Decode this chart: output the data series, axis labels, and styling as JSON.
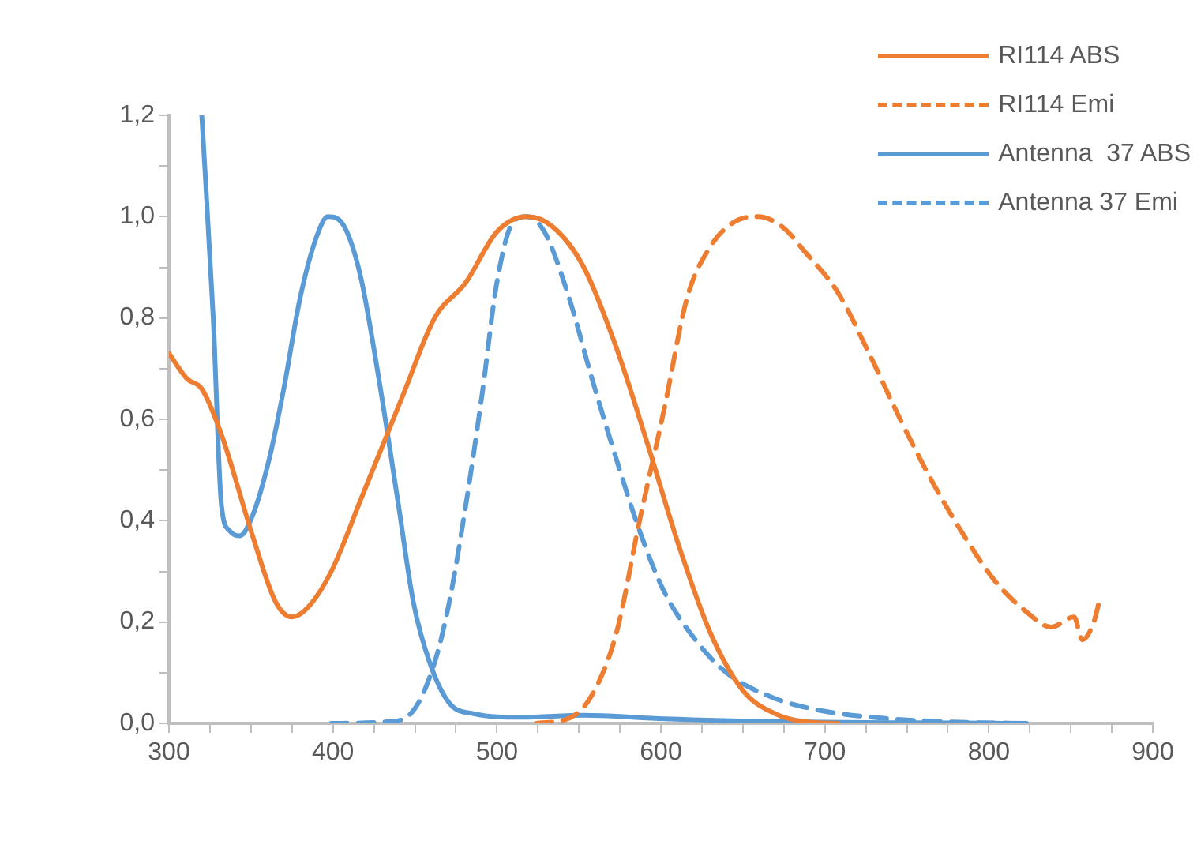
{
  "chart_data": {
    "type": "line",
    "xlim": [
      300,
      900
    ],
    "ylim": [
      0,
      1.2
    ],
    "xticks": [
      300,
      {
        "value": 325,
        "label": null
      },
      {
        "value": 350,
        "label": null
      },
      {
        "value": 375,
        "label": null
      },
      400,
      {
        "value": 425,
        "label": null
      },
      {
        "value": 450,
        "label": null
      },
      {
        "value": 475,
        "label": null
      },
      500,
      {
        "value": 525,
        "label": null
      },
      {
        "value": 550,
        "label": null
      },
      {
        "value": 575,
        "label": null
      },
      600,
      {
        "value": 625,
        "label": null
      },
      {
        "value": 650,
        "label": null
      },
      {
        "value": 675,
        "label": null
      },
      700,
      {
        "value": 725,
        "label": null
      },
      {
        "value": 750,
        "label": null
      },
      {
        "value": 775,
        "label": null
      },
      800,
      {
        "value": 825,
        "label": null
      },
      {
        "value": 850,
        "label": null
      },
      {
        "value": 875,
        "label": null
      },
      900
    ],
    "yticks": [
      {
        "value": 0,
        "label": "0,0"
      },
      {
        "value": 0.1,
        "label": null
      },
      {
        "value": 0.2,
        "label": "0,2"
      },
      {
        "value": 0.3,
        "label": null
      },
      {
        "value": 0.4,
        "label": "0,4"
      },
      {
        "value": 0.5,
        "label": null
      },
      {
        "value": 0.6,
        "label": "0,6"
      },
      {
        "value": 0.7,
        "label": null
      },
      {
        "value": 0.8,
        "label": "0,8"
      },
      {
        "value": 0.9,
        "label": null
      },
      {
        "value": 1.0,
        "label": "1,0"
      },
      {
        "value": 1.1,
        "label": null
      },
      {
        "value": 1.2,
        "label": "1,2"
      }
    ],
    "grid": false,
    "legend": "top right",
    "marker": "none",
    "series": [
      {
        "name": "RI114 ABS",
        "color": "#ed7d31",
        "line_style": "solid",
        "x": [
          300,
          311,
          320,
          332,
          351,
          365,
          375,
          385,
          399,
          418,
          443,
          462,
          481,
          500,
          518,
          534,
          553,
          573,
          592,
          611,
          630,
          650,
          669,
          688,
          708
        ],
        "values": [
          0.73,
          0.68,
          0.66,
          0.57,
          0.37,
          0.24,
          0.21,
          0.23,
          0.3,
          0.45,
          0.65,
          0.8,
          0.87,
          0.97,
          1.0,
          0.98,
          0.9,
          0.74,
          0.55,
          0.35,
          0.18,
          0.065,
          0.02,
          0.003,
          0
        ]
      },
      {
        "name": "RI114 Emi",
        "color": "#ed7d31",
        "line_style": "dashed",
        "x": [
          524,
          544,
          558,
          573,
          587,
          602,
          616,
          630,
          645,
          659,
          674,
          688,
          708,
          727,
          746,
          765,
          785,
          804,
          823,
          838,
          852,
          857,
          864,
          868
        ],
        "values": [
          0,
          0.01,
          0.056,
          0.18,
          0.4,
          0.62,
          0.84,
          0.94,
          0.99,
          1.0,
          0.98,
          0.93,
          0.85,
          0.73,
          0.6,
          0.48,
          0.37,
          0.28,
          0.22,
          0.19,
          0.21,
          0.165,
          0.2,
          0.25
        ]
      },
      {
        "name": "Antenna  37 ABS",
        "color": "#5b9bd5",
        "line_style": "solid",
        "x": [
          320,
          327,
          332,
          337,
          343,
          351,
          361,
          370,
          380,
          390,
          397,
          407,
          417,
          428,
          440,
          449,
          459,
          471,
          486,
          515,
          553,
          602,
          679,
          756,
          823
        ],
        "values": [
          1.2,
          0.8,
          0.43,
          0.38,
          0.37,
          0.41,
          0.52,
          0.66,
          0.84,
          0.96,
          1.0,
          0.98,
          0.88,
          0.68,
          0.43,
          0.24,
          0.12,
          0.04,
          0.019,
          0.012,
          0.016,
          0.009,
          0.003,
          0.001,
          0
        ]
      },
      {
        "name": "Antenna 37 Emi",
        "color": "#5b9bd5",
        "line_style": "dashed",
        "x": [
          399,
          433,
          449,
          462,
          471,
          481,
          491,
          500,
          510,
          518,
          529,
          544,
          558,
          573,
          587,
          602,
          621,
          640,
          669,
          698,
          736,
          775,
          813
        ],
        "values": [
          0,
          0.003,
          0.025,
          0.12,
          0.24,
          0.43,
          0.65,
          0.87,
          0.99,
          1.0,
          0.97,
          0.84,
          0.68,
          0.52,
          0.38,
          0.26,
          0.165,
          0.1,
          0.05,
          0.025,
          0.01,
          0.003,
          0
        ]
      }
    ]
  }
}
